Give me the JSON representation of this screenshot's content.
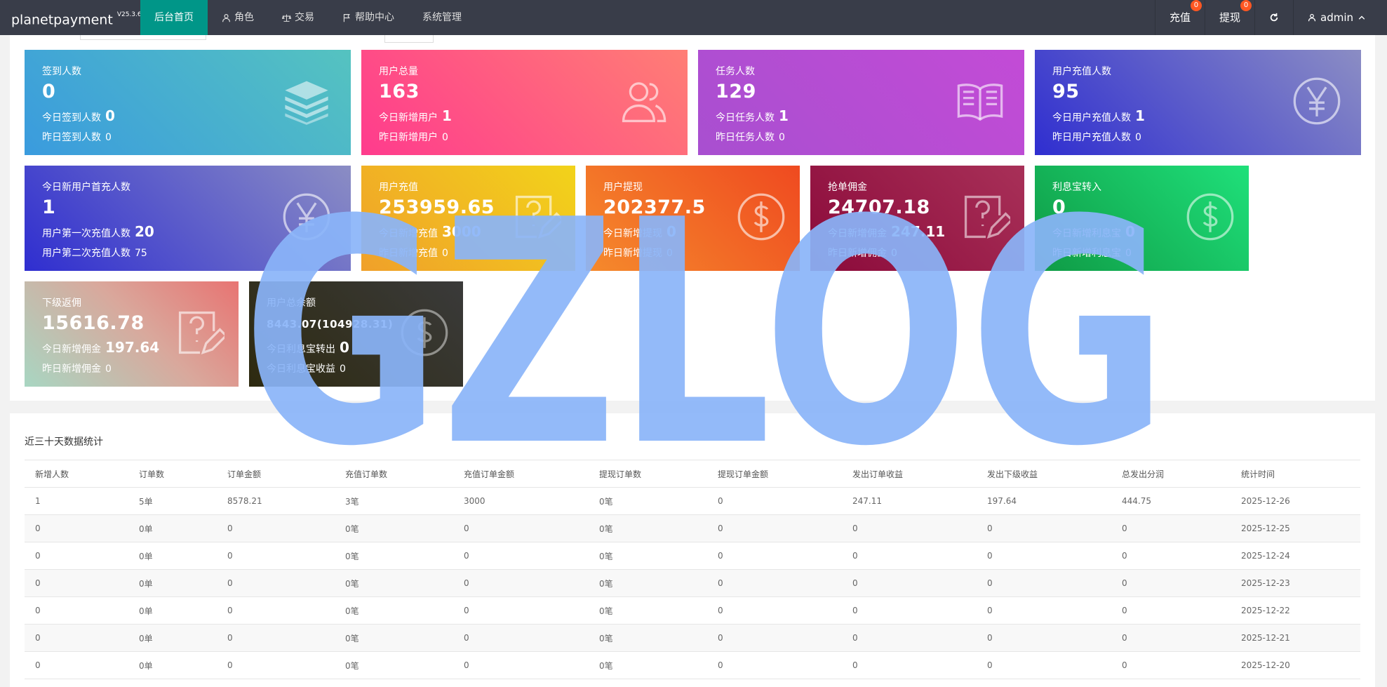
{
  "app": {
    "name": "planetpayment",
    "version": "V25.3.6"
  },
  "nav": {
    "items": [
      {
        "label": "后台首页"
      },
      {
        "label": "角色"
      },
      {
        "label": "交易"
      },
      {
        "label": "帮助中心"
      },
      {
        "label": "系统管理"
      }
    ]
  },
  "right_nav": {
    "recharge": {
      "label": "充值",
      "badge": "0"
    },
    "withdraw": {
      "label": "提现",
      "badge": "0"
    },
    "user": {
      "label": "admin"
    }
  },
  "cards": {
    "checkin": {
      "title": "签到人数",
      "value": "0",
      "today_label": "今日签到人数",
      "today_value": "0",
      "yesterday_label": "昨日签到人数",
      "yesterday_value": "0"
    },
    "users": {
      "title": "用户总量",
      "value": "163",
      "today_label": "今日新增用户",
      "today_value": "1",
      "yesterday_label": "昨日新增用户",
      "yesterday_value": "0"
    },
    "tasks": {
      "title": "任务人数",
      "value": "129",
      "today_label": "今日任务人数",
      "today_value": "1",
      "yesterday_label": "昨日任务人数",
      "yesterday_value": "0"
    },
    "rechargers": {
      "title": "用户充值人数",
      "value": "95",
      "today_label": "今日用户充值人数",
      "today_value": "1",
      "yesterday_label": "昨日用户充值人数",
      "yesterday_value": "0"
    },
    "first_recharge": {
      "title": "今日新用户首充人数",
      "value": "1",
      "today_label": "用户第一次充值人数",
      "today_value": "20",
      "yesterday_label": "用户第二次充值人数",
      "yesterday_value": "75"
    },
    "recharge": {
      "title": "用户充值",
      "value": "253959.65",
      "today_label": "今日新增充值",
      "today_value": "3000",
      "yesterday_label": "昨日新增充值",
      "yesterday_value": "0"
    },
    "withdraw": {
      "title": "用户提现",
      "value": "202377.5",
      "today_label": "今日新增提现",
      "today_value": "0",
      "yesterday_label": "昨日新增提现",
      "yesterday_value": "0"
    },
    "commission": {
      "title": "抢单佣金",
      "value": "24707.18",
      "today_label": "今日新增佣金",
      "today_value": "247.11",
      "yesterday_label": "昨日新增佣金",
      "yesterday_value": "0"
    },
    "interest_in": {
      "title": "利息宝转入",
      "value": "0",
      "today_label": "今日新增利息宝",
      "today_value": "0",
      "yesterday_label": "昨日新增利息宝",
      "yesterday_value": "0"
    },
    "sub_rebate": {
      "title": "下级返佣",
      "value": "15616.78",
      "today_label": "今日新增佣金",
      "today_value": "197.64",
      "yesterday_label": "昨日新增佣金",
      "yesterday_value": "0"
    },
    "balance": {
      "title": "用户总余额",
      "value": "8443.07(104928.31)",
      "today_label": "今日利息宝转出",
      "today_value": "0",
      "yesterday_label": "今日利息宝收益",
      "yesterday_value": "0"
    }
  },
  "stats": {
    "title": "近三十天数据统计",
    "columns": [
      "新增人数",
      "订单数",
      "订单金额",
      "充值订单数",
      "充值订单金额",
      "提现订单数",
      "提现订单金额",
      "发出订单收益",
      "发出下级收益",
      "总发出分润",
      "统计时间"
    ],
    "rows": [
      [
        "1",
        "5单",
        "8578.21",
        "3笔",
        "3000",
        "0笔",
        "0",
        "247.11",
        "197.64",
        "444.75",
        "2025-12-26"
      ],
      [
        "0",
        "0单",
        "0",
        "0笔",
        "0",
        "0笔",
        "0",
        "0",
        "0",
        "0",
        "2025-12-25"
      ],
      [
        "0",
        "0单",
        "0",
        "0笔",
        "0",
        "0笔",
        "0",
        "0",
        "0",
        "0",
        "2025-12-24"
      ],
      [
        "0",
        "0单",
        "0",
        "0笔",
        "0",
        "0笔",
        "0",
        "0",
        "0",
        "0",
        "2025-12-23"
      ],
      [
        "0",
        "0单",
        "0",
        "0笔",
        "0",
        "0笔",
        "0",
        "0",
        "0",
        "0",
        "2025-12-22"
      ],
      [
        "0",
        "0单",
        "0",
        "0笔",
        "0",
        "0笔",
        "0",
        "0",
        "0",
        "0",
        "2025-12-21"
      ],
      [
        "0",
        "0单",
        "0",
        "0笔",
        "0",
        "0笔",
        "0",
        "0",
        "0",
        "0",
        "2025-12-20"
      ]
    ]
  },
  "watermark": "GZLOG",
  "colors": {
    "topbar": "#393d49",
    "active_nav": "#009688",
    "badge": "#ff5722",
    "watermark": "#8ab4f8"
  }
}
